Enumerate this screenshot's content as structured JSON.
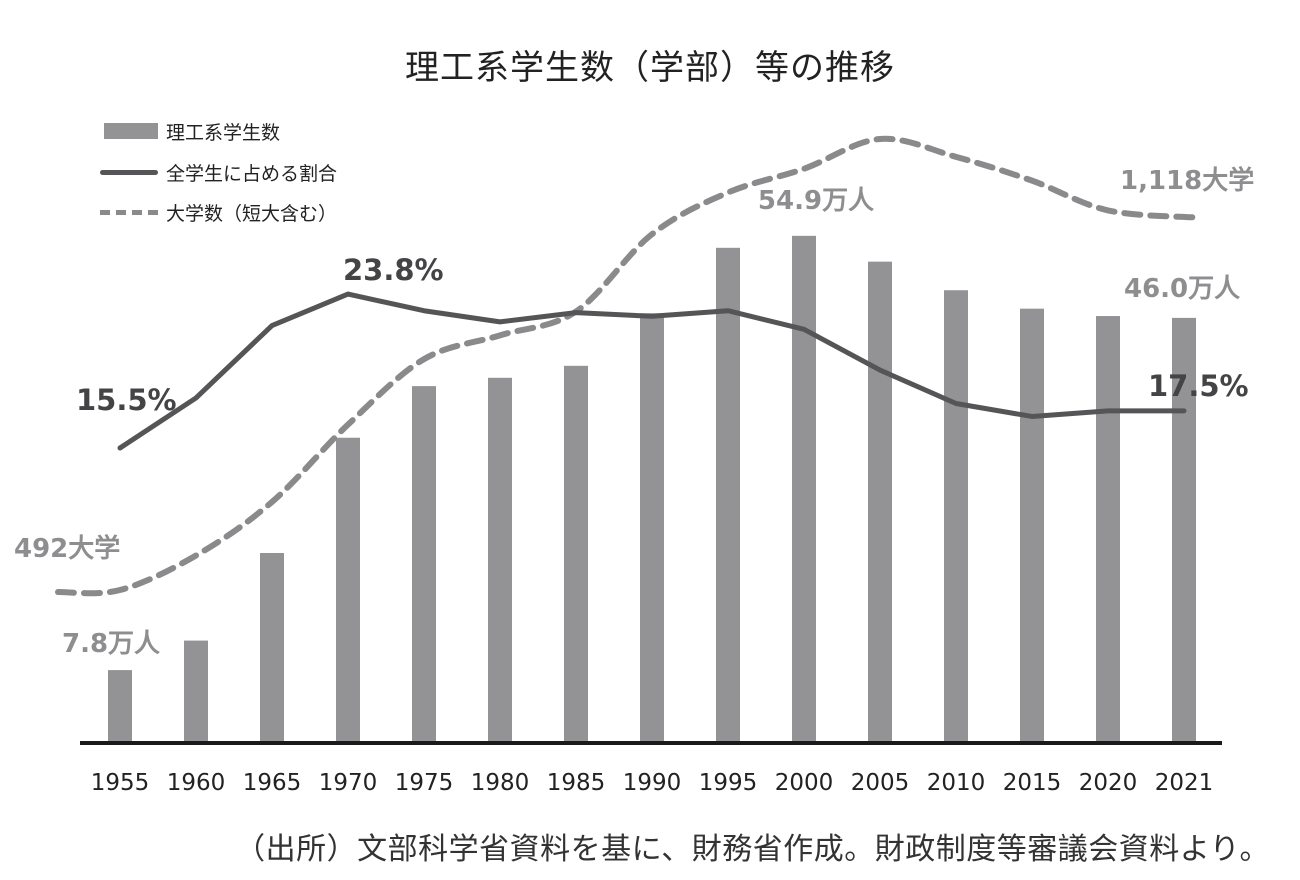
{
  "title": "理工系学生数（学部）等の推移",
  "source": "（出所）文部科学省資料を基に、財務省作成。財政制度等審議会資料より。",
  "legend": {
    "bar": "理工系学生数",
    "line": "全学生に占める割合",
    "dashed": "大学数（短大含む）"
  },
  "colors": {
    "bar": "#939396",
    "line": "#555558",
    "dashed": "#8a8a8d",
    "axis": "#1a1a1a"
  },
  "chart_data": {
    "type": "bar",
    "categories": [
      "1955",
      "1960",
      "1965",
      "1970",
      "1975",
      "1980",
      "1985",
      "1990",
      "1995",
      "2000",
      "2005",
      "2010",
      "2015",
      "2020",
      "2021"
    ],
    "series": [
      {
        "name": "理工系学生数",
        "type": "bar",
        "unit": "万人",
        "values": [
          7.8,
          11.0,
          20.5,
          33.0,
          38.6,
          39.5,
          40.8,
          46.5,
          53.6,
          54.9,
          52.1,
          49.0,
          47.0,
          46.2,
          46.0
        ]
      },
      {
        "name": "全学生に占める割合",
        "type": "line",
        "unit": "%",
        "values": [
          15.5,
          18.2,
          22.1,
          23.8,
          22.9,
          22.3,
          22.8,
          22.6,
          22.9,
          21.9,
          19.7,
          17.9,
          17.2,
          17.5,
          17.5
        ]
      },
      {
        "name": "大学数（短大含む）",
        "type": "line-dashed",
        "unit": "大学",
        "values": [
          492,
          550,
          640,
          770,
          880,
          920,
          960,
          1090,
          1160,
          1200,
          1250,
          1220,
          1180,
          1130,
          1118
        ]
      }
    ],
    "annotations": {
      "bar_first": "7.8万人",
      "bar_peak": "54.9万人",
      "bar_last": "46.0万人",
      "line_first": "15.5%",
      "line_peak": "23.8%",
      "line_last": "17.5%",
      "dashed_first": "492大学",
      "dashed_last": "1,118大学"
    },
    "grid": false,
    "legend_position": "top-left"
  }
}
